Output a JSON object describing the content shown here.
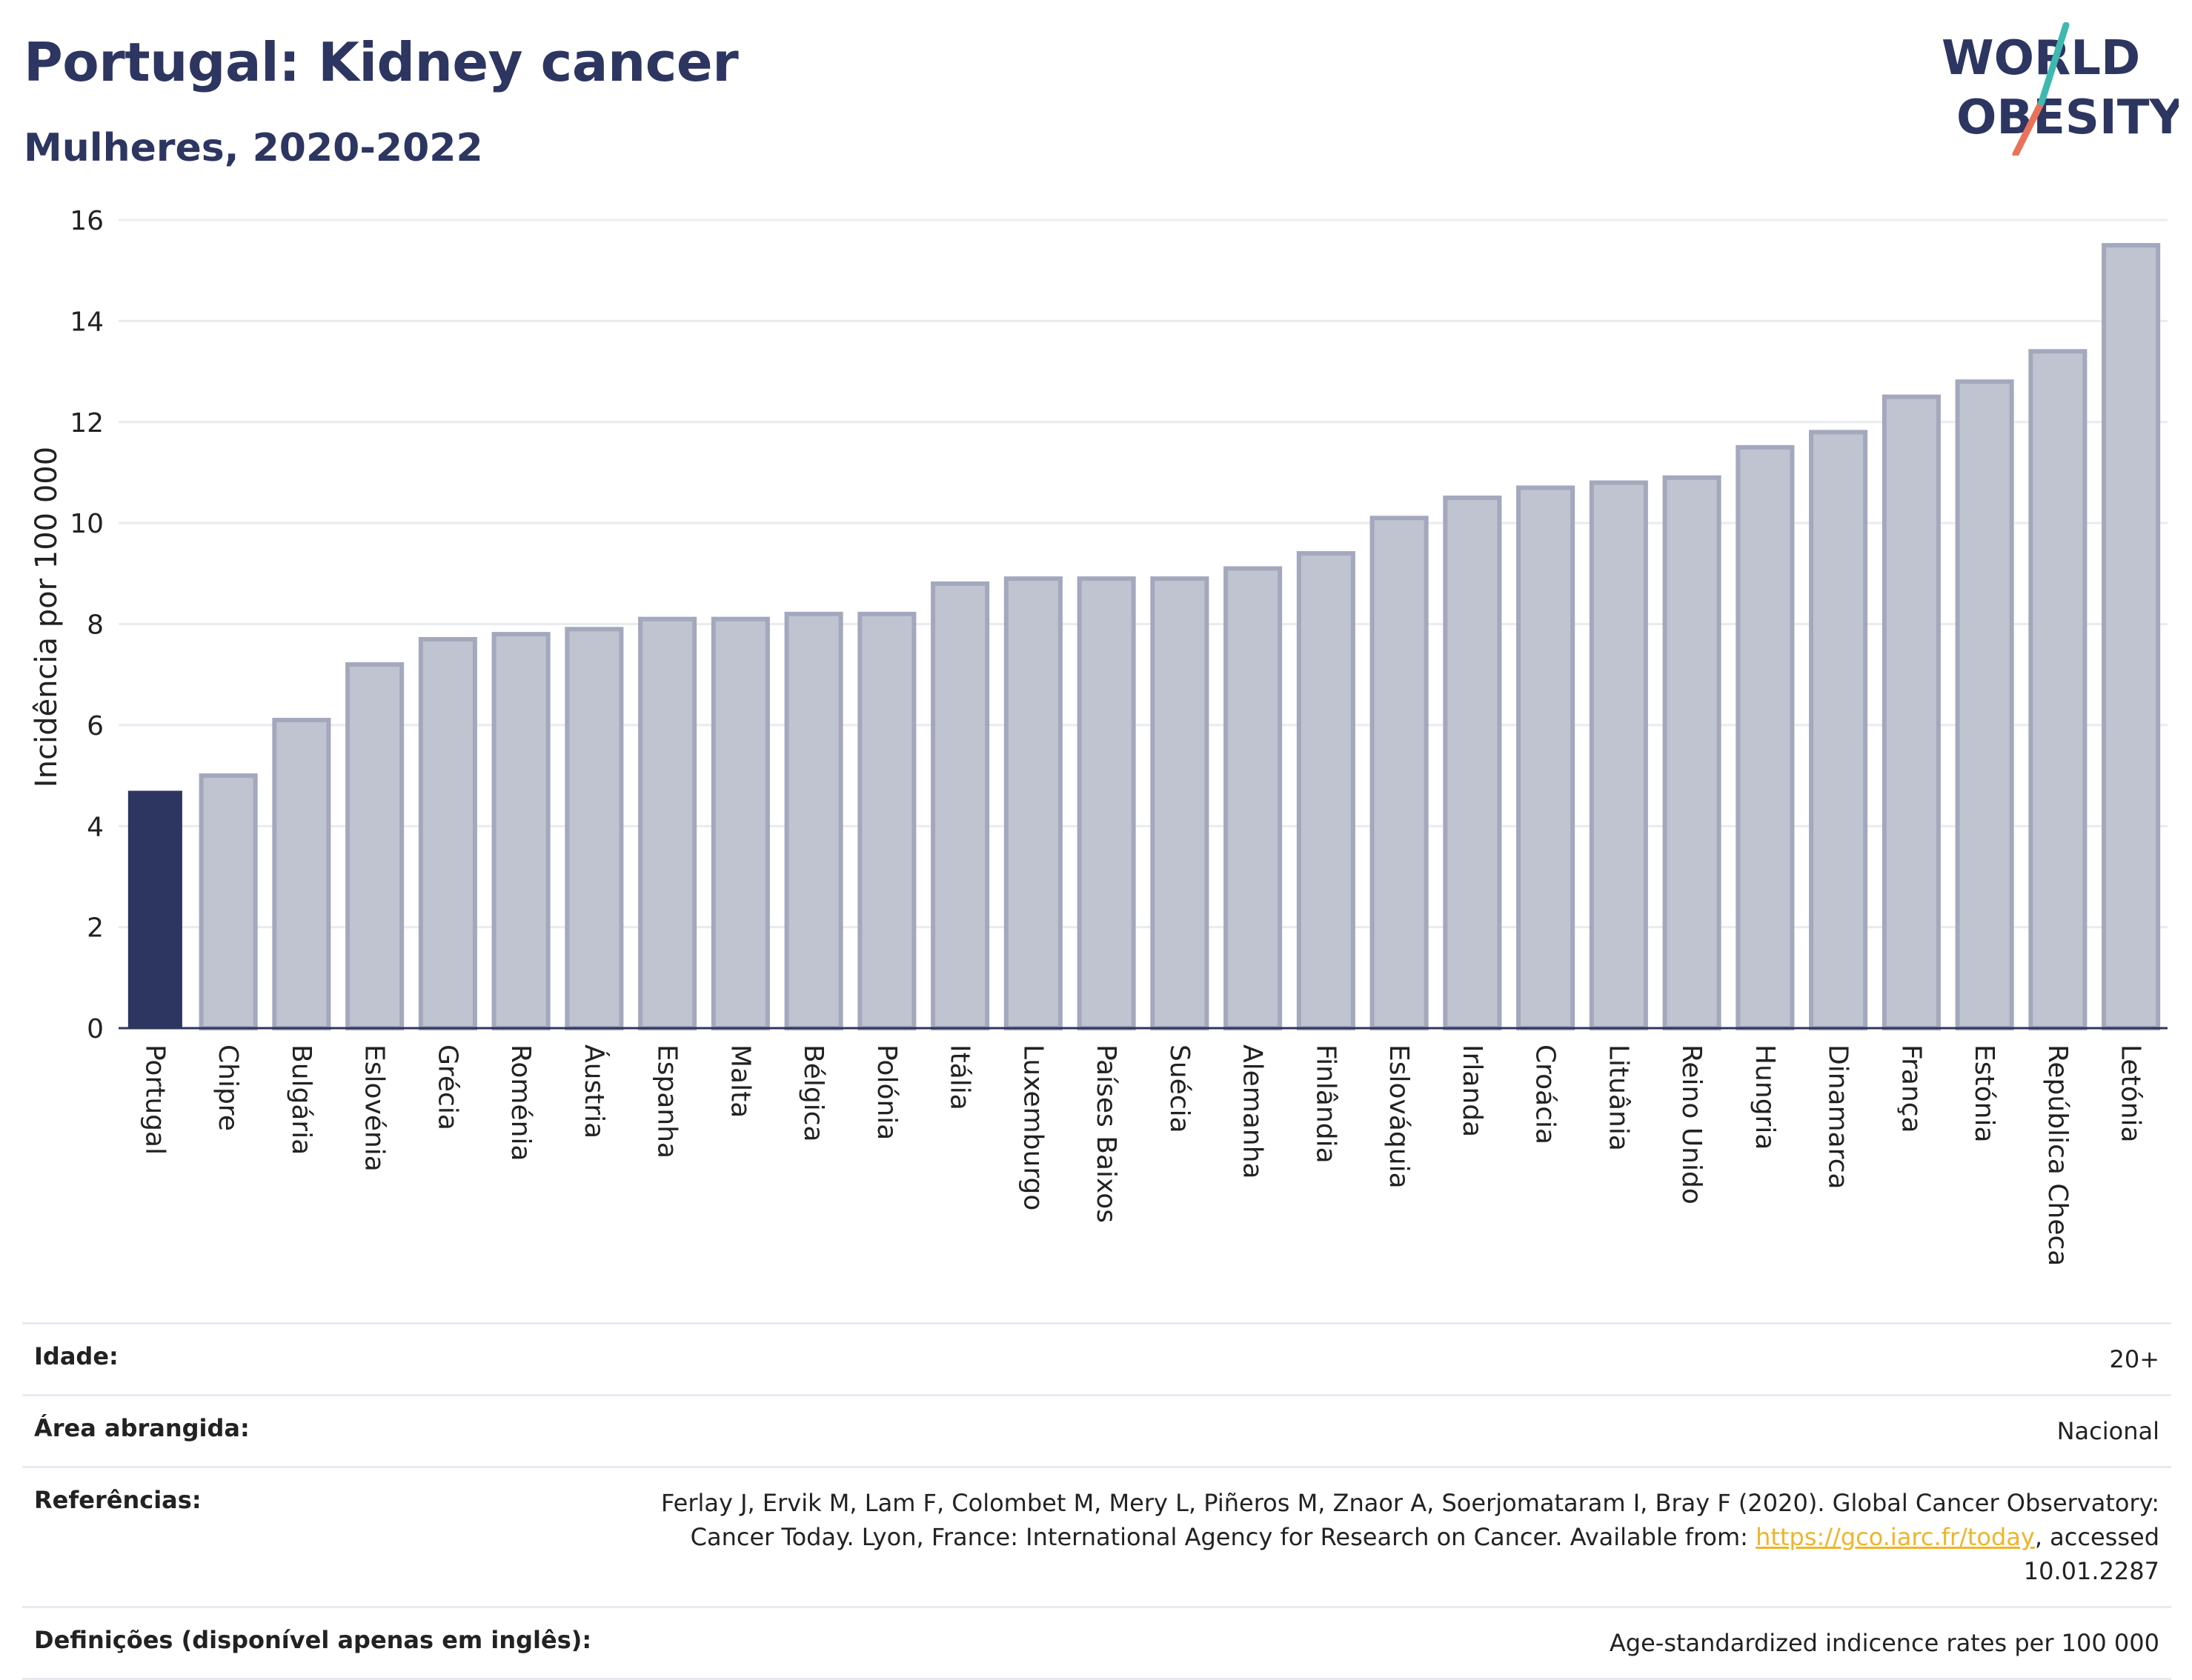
{
  "header": {
    "title": "Portugal: Kidney cancer",
    "subtitle": "Mulheres, 2020-2022"
  },
  "logo": {
    "line1": "WORLD",
    "line2": "OBESITY"
  },
  "chart_data": {
    "type": "bar",
    "ylabel": "Incidência por 100 000",
    "xlabel": "",
    "ylim": [
      0,
      16
    ],
    "yticks": [
      0,
      2,
      4,
      6,
      8,
      10,
      12,
      14,
      16
    ],
    "grid": true,
    "highlight_category": "Portugal",
    "colors": {
      "highlight": "#2d3561",
      "bar": "#c0c3d0",
      "bar_edge": "#a3a8bd"
    },
    "categories": [
      "Portugal",
      "Chipre",
      "Bulgária",
      "Eslovénia",
      "Grécia",
      "Roménia",
      "Áustria",
      "Espanha",
      "Malta",
      "Bélgica",
      "Polónia",
      "Itália",
      "Luxemburgo",
      "Países Baixos",
      "Suécia",
      "Alemanha",
      "Finlândia",
      "Eslováquia",
      "Irlanda",
      "Croácia",
      "Lituânia",
      "Reino Unido",
      "Hungria",
      "Dinamarca",
      "França",
      "Estónia",
      "República Checa",
      "Letónia"
    ],
    "values": [
      4.7,
      5.0,
      6.1,
      7.2,
      7.7,
      7.8,
      7.9,
      8.1,
      8.1,
      8.2,
      8.2,
      8.8,
      8.9,
      8.9,
      8.9,
      9.1,
      9.4,
      10.1,
      10.5,
      10.7,
      10.8,
      10.9,
      11.5,
      11.8,
      12.5,
      12.8,
      13.4,
      15.5
    ]
  },
  "info": {
    "rows": [
      {
        "key": "Idade:",
        "value": "20+"
      },
      {
        "key": "Área abrangida:",
        "value": "Nacional"
      },
      {
        "key": "Referências:",
        "value_pre": "Ferlay J, Ervik M, Lam F, Colombet M, Mery L, Piñeros M, Znaor A, Soerjomataram I, Bray F (2020). Global Cancer Observatory: Cancer Today. Lyon, France: International Agency for Research on Cancer. Available from: ",
        "link": "https://gco.iarc.fr/today",
        "value_post": ", accessed 10.01.2287"
      },
      {
        "key": "Definições (disponível apenas em inglês):",
        "value": "Age-standardized indicence rates per 100 000"
      }
    ]
  }
}
